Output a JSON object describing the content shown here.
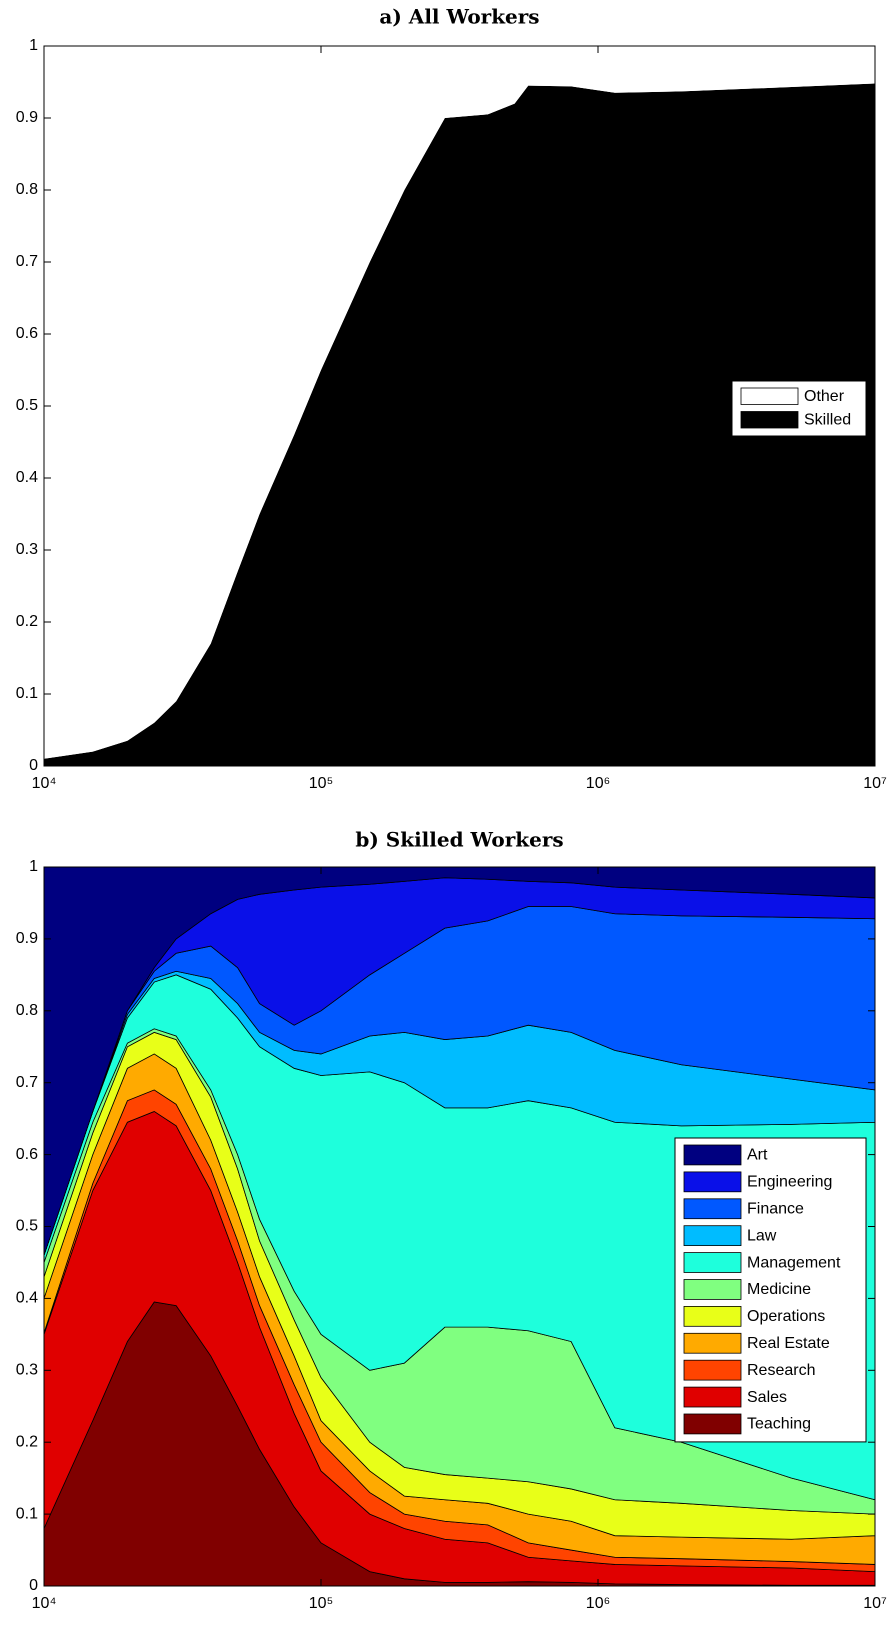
{
  "chart_data": [
    {
      "type": "area",
      "title": "a) All Workers",
      "stacked": true,
      "xscale": "log",
      "legend": "right",
      "x": [
        10000,
        15000,
        20000,
        25000,
        30000,
        40000,
        50000,
        60000,
        80000,
        100000,
        150000,
        200000,
        280000,
        400000,
        500000,
        560000,
        800000,
        1150000,
        2000000,
        5000000,
        10000000
      ],
      "series": [
        {
          "name": "Other",
          "color": "#ffffff",
          "values": [
            0.99,
            0.98,
            0.965,
            0.94,
            0.91,
            0.83,
            0.73,
            0.65,
            0.54,
            0.45,
            0.3,
            0.2,
            0.1,
            0.095,
            0.08,
            0.055,
            0.056,
            0.065,
            0.063,
            0.057,
            0.052
          ]
        },
        {
          "name": "Skilled",
          "color": "#000000",
          "values": [
            0.01,
            0.02,
            0.035,
            0.06,
            0.09,
            0.17,
            0.27,
            0.35,
            0.46,
            0.55,
            0.7,
            0.8,
            0.9,
            0.905,
            0.92,
            0.945,
            0.944,
            0.935,
            0.937,
            0.943,
            0.948
          ]
        }
      ],
      "xlim": [
        10000,
        10000000
      ],
      "xticks": [
        {
          "value": 10000,
          "label": "10⁴"
        },
        {
          "value": 100000,
          "label": "10⁵"
        },
        {
          "value": 1000000,
          "label": "10⁶"
        },
        {
          "value": 10000000,
          "label": "10⁷"
        }
      ],
      "ylim": [
        0,
        1
      ],
      "yticks": [
        0,
        0.1,
        0.2,
        0.3,
        0.4,
        0.5,
        0.6,
        0.7,
        0.8,
        0.9,
        1
      ]
    },
    {
      "type": "area",
      "title": "b) Skilled Workers",
      "stacked": true,
      "xscale": "log",
      "legend": "right",
      "x": [
        10000,
        15000,
        20000,
        25000,
        30000,
        40000,
        50000,
        60000,
        80000,
        100000,
        150000,
        200000,
        280000,
        400000,
        560000,
        800000,
        1150000,
        2000000,
        5000000,
        10000000
      ],
      "series": [
        {
          "name": "Art",
          "color": "#000080",
          "values": [
            0.54,
            0.34,
            0.2,
            0.14,
            0.1,
            0.065,
            0.045,
            0.038,
            0.032,
            0.028,
            0.024,
            0.02,
            0.015,
            0.017,
            0.02,
            0.022,
            0.028,
            0.032,
            0.038,
            0.043
          ]
        },
        {
          "name": "Engineering",
          "color": "#0a10e8",
          "values": [
            0,
            0,
            0,
            0.005,
            0.02,
            0.045,
            0.095,
            0.152,
            0.188,
            0.172,
            0.126,
            0.1,
            0.07,
            0.058,
            0.035,
            0.033,
            0.037,
            0.036,
            0.032,
            0.029
          ]
        },
        {
          "name": "Finance",
          "color": "#0058ff",
          "values": [
            0,
            0,
            0.005,
            0.01,
            0.025,
            0.045,
            0.05,
            0.04,
            0.035,
            0.06,
            0.085,
            0.11,
            0.155,
            0.16,
            0.165,
            0.175,
            0.19,
            0.207,
            0.225,
            0.238
          ]
        },
        {
          "name": "Law",
          "color": "#00bcff",
          "values": [
            0,
            0,
            0.005,
            0.005,
            0.005,
            0.015,
            0.02,
            0.02,
            0.025,
            0.03,
            0.05,
            0.07,
            0.095,
            0.1,
            0.105,
            0.105,
            0.1,
            0.085,
            0.063,
            0.045
          ]
        },
        {
          "name": "Management",
          "color": "#1effdc",
          "values": [
            0.01,
            0.015,
            0.035,
            0.065,
            0.085,
            0.14,
            0.19,
            0.24,
            0.31,
            0.36,
            0.415,
            0.39,
            0.305,
            0.305,
            0.32,
            0.325,
            0.425,
            0.44,
            0.492,
            0.525
          ]
        },
        {
          "name": "Medicine",
          "color": "#80ff80",
          "values": [
            0.02,
            0.015,
            0.005,
            0.005,
            0.005,
            0.01,
            0.02,
            0.03,
            0.04,
            0.06,
            0.1,
            0.145,
            0.205,
            0.21,
            0.21,
            0.205,
            0.1,
            0.085,
            0.045,
            0.02
          ]
        },
        {
          "name": "Operations",
          "color": "#e8ff18",
          "values": [
            0.03,
            0.03,
            0.03,
            0.03,
            0.04,
            0.06,
            0.06,
            0.05,
            0.05,
            0.06,
            0.04,
            0.04,
            0.035,
            0.035,
            0.045,
            0.045,
            0.05,
            0.047,
            0.04,
            0.03
          ]
        },
        {
          "name": "Real Estate",
          "color": "#ffaa00",
          "values": [
            0.048,
            0.04,
            0.045,
            0.05,
            0.05,
            0.04,
            0.04,
            0.04,
            0.04,
            0.03,
            0.03,
            0.025,
            0.03,
            0.03,
            0.04,
            0.04,
            0.03,
            0.03,
            0.031,
            0.04
          ]
        },
        {
          "name": "Research",
          "color": "#ff4400",
          "values": [
            0.002,
            0.01,
            0.03,
            0.03,
            0.03,
            0.03,
            0.03,
            0.03,
            0.04,
            0.04,
            0.03,
            0.02,
            0.025,
            0.025,
            0.02,
            0.015,
            0.01,
            0.01,
            0.009,
            0.01
          ]
        },
        {
          "name": "Sales",
          "color": "#e00000",
          "values": [
            0.27,
            0.32,
            0.305,
            0.265,
            0.25,
            0.23,
            0.2,
            0.17,
            0.13,
            0.1,
            0.08,
            0.07,
            0.06,
            0.055,
            0.034,
            0.03,
            0.027,
            0.026,
            0.024,
            0.019
          ]
        },
        {
          "name": "Teaching",
          "color": "#800000",
          "values": [
            0.08,
            0.23,
            0.34,
            0.395,
            0.39,
            0.32,
            0.25,
            0.19,
            0.11,
            0.06,
            0.02,
            0.01,
            0.005,
            0.005,
            0.006,
            0.005,
            0.003,
            0.002,
            0.001,
            0.001
          ]
        }
      ],
      "xlim": [
        10000,
        10000000
      ],
      "xticks": [
        {
          "value": 10000,
          "label": "10⁴"
        },
        {
          "value": 100000,
          "label": "10⁵"
        },
        {
          "value": 1000000,
          "label": "10⁶"
        },
        {
          "value": 10000000,
          "label": "10⁷"
        }
      ],
      "ylim": [
        0,
        1
      ],
      "yticks": [
        0,
        0.1,
        0.2,
        0.3,
        0.4,
        0.5,
        0.6,
        0.7,
        0.8,
        0.9,
        1
      ]
    }
  ]
}
